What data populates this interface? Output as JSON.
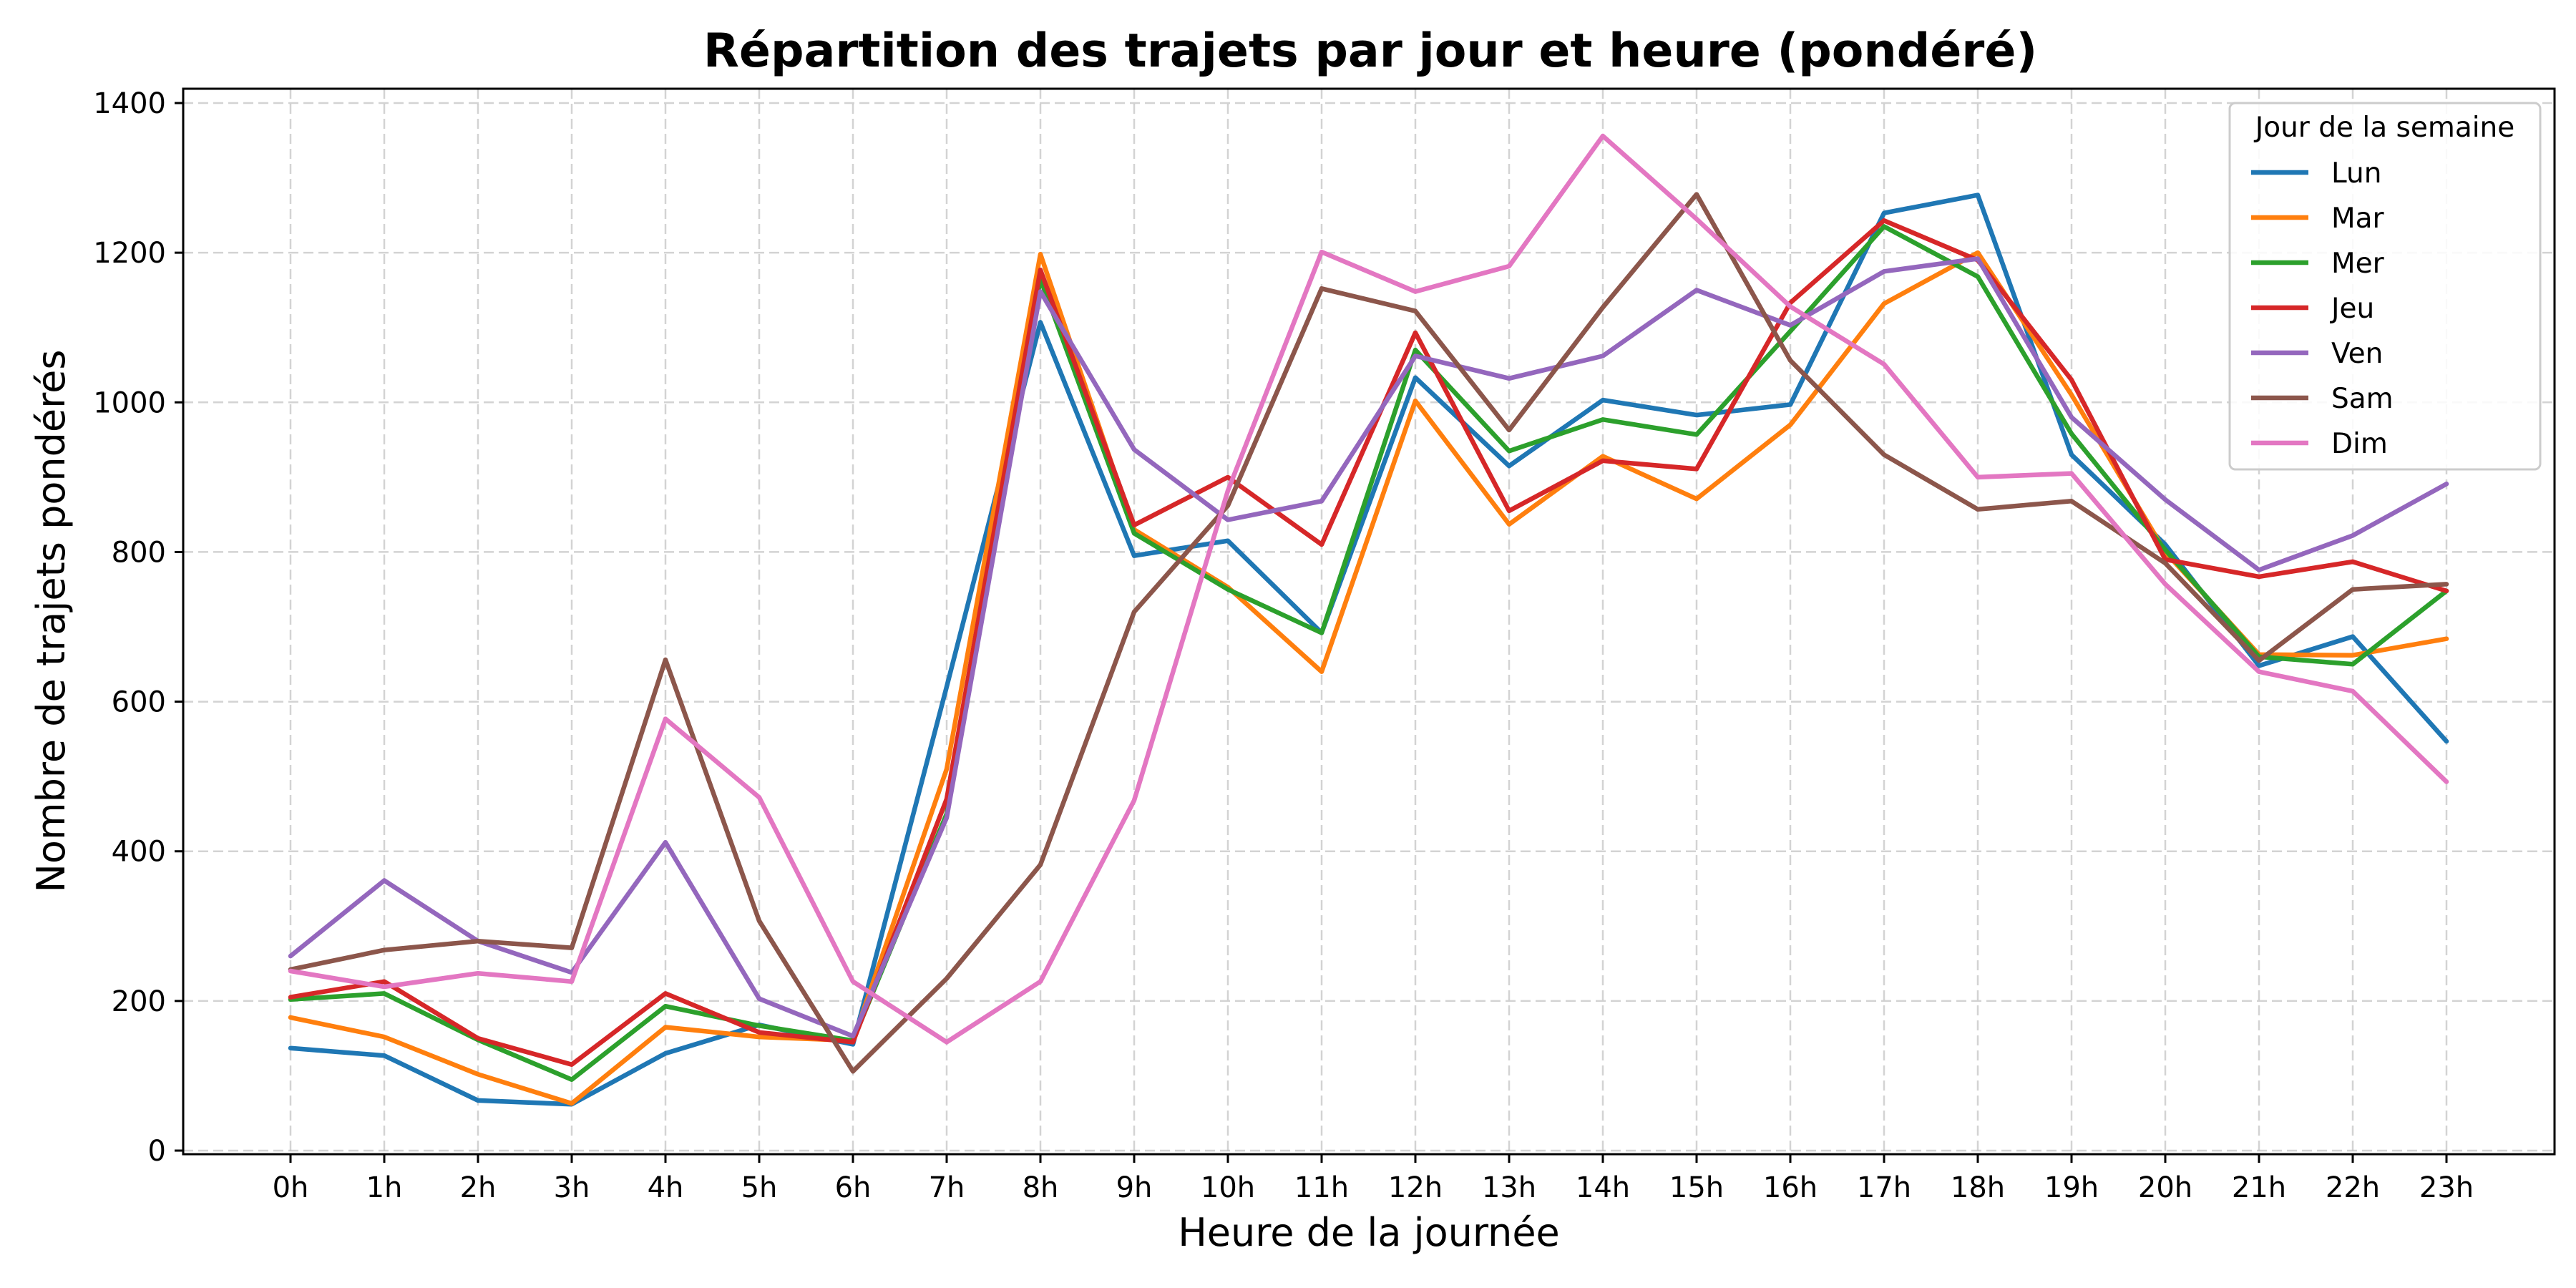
{
  "chart_data": {
    "type": "line",
    "title": "Répartition des trajets par jour et heure (pondéré)",
    "xlabel": "Heure de la journée",
    "ylabel": "Nombre de trajets pondérés",
    "ylim": [
      0,
      1420
    ],
    "yticks": [
      0,
      200,
      400,
      600,
      800,
      1000,
      1200,
      1400
    ],
    "grid": true,
    "legend_title": "Jour de la semaine",
    "legend_position": "upper right",
    "categories": [
      "0h",
      "1h",
      "2h",
      "3h",
      "4h",
      "5h",
      "6h",
      "7h",
      "8h",
      "9h",
      "10h",
      "11h",
      "12h",
      "13h",
      "14h",
      "15h",
      "16h",
      "17h",
      "18h",
      "19h",
      "20h",
      "21h",
      "22h",
      "23h"
    ],
    "series": [
      {
        "name": "Lun",
        "color": "#1f77b4",
        "values": [
          137,
          127,
          67,
          62,
          130,
          168,
          142,
          620,
          1107,
          795,
          815,
          692,
          1033,
          915,
          1003,
          983,
          997,
          1253,
          1277,
          930,
          810,
          648,
          687,
          547
        ]
      },
      {
        "name": "Mar",
        "color": "#ff7f0e",
        "values": [
          178,
          152,
          102,
          63,
          165,
          152,
          147,
          510,
          1198,
          830,
          753,
          640,
          1002,
          837,
          928,
          871,
          970,
          1132,
          1200,
          1010,
          800,
          663,
          662,
          684
        ]
      },
      {
        "name": "Mer",
        "color": "#2ca02c",
        "values": [
          202,
          210,
          148,
          95,
          193,
          167,
          147,
          450,
          1165,
          825,
          750,
          692,
          1070,
          935,
          977,
          957,
          1095,
          1235,
          1168,
          958,
          803,
          660,
          650,
          748
        ]
      },
      {
        "name": "Jeu",
        "color": "#d62728",
        "values": [
          205,
          226,
          150,
          115,
          210,
          158,
          145,
          470,
          1177,
          836,
          900,
          810,
          1093,
          855,
          922,
          911,
          1133,
          1243,
          1190,
          1030,
          790,
          767,
          787,
          748
        ]
      },
      {
        "name": "Ven",
        "color": "#9467bd",
        "values": [
          260,
          361,
          280,
          238,
          412,
          203,
          153,
          445,
          1148,
          937,
          843,
          868,
          1062,
          1032,
          1062,
          1150,
          1103,
          1175,
          1192,
          980,
          870,
          776,
          822,
          891
        ]
      },
      {
        "name": "Sam",
        "color": "#8c564b",
        "values": [
          242,
          268,
          280,
          271,
          656,
          307,
          106,
          230,
          382,
          720,
          862,
          1152,
          1122,
          963,
          1127,
          1278,
          1056,
          930,
          857,
          868,
          785,
          655,
          750,
          757
        ]
      },
      {
        "name": "Dim",
        "color": "#e377c2",
        "values": [
          240,
          219,
          237,
          226,
          577,
          472,
          226,
          145,
          226,
          468,
          882,
          1201,
          1148,
          1182,
          1356,
          1245,
          1128,
          1051,
          900,
          905,
          757,
          640,
          614,
          493
        ]
      }
    ]
  }
}
